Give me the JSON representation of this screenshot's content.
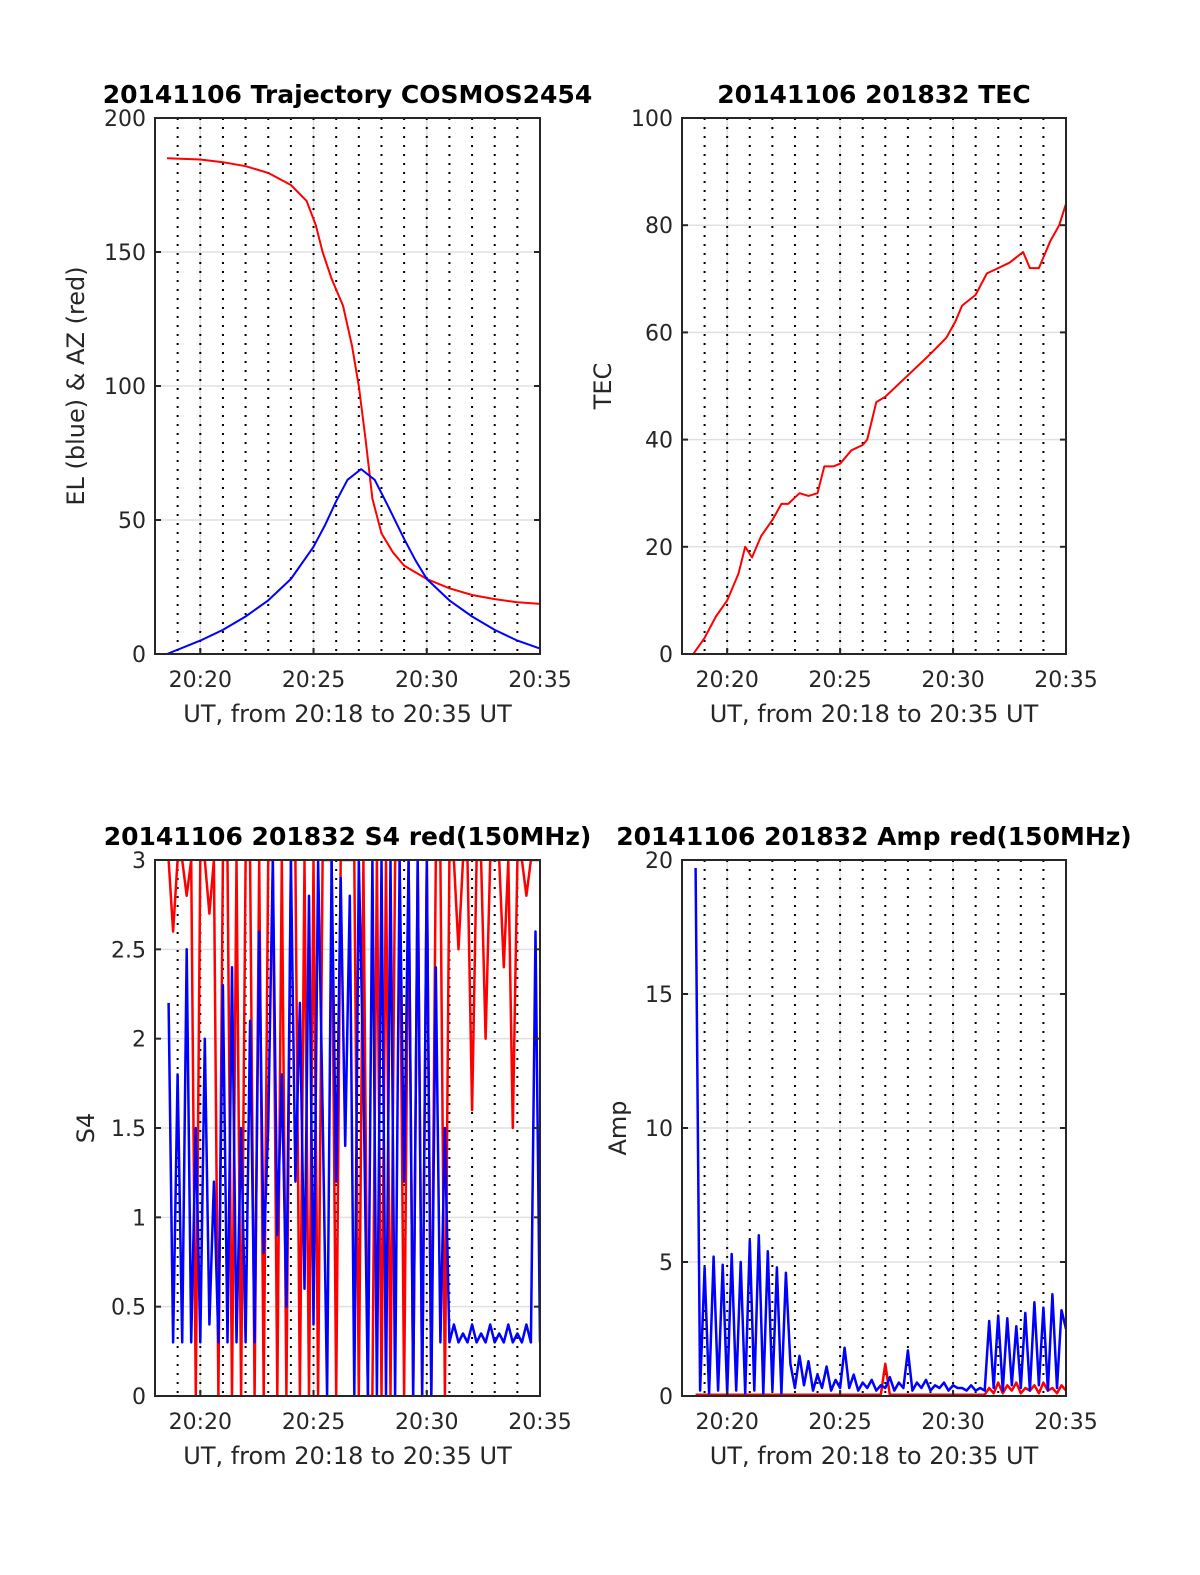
{
  "chart_data": [
    {
      "type": "line",
      "title": "20141106 Trajectory COSMOS2454",
      "xlabel": "UT, from 20:18 to 20:35 UT",
      "ylabel": "EL (blue) & AZ (red)",
      "x_units": "minutes after 20:18 UT",
      "xlim": [
        0,
        17
      ],
      "ylim": [
        0,
        200
      ],
      "xticks": [
        2,
        7,
        12,
        17
      ],
      "xtick_labels": [
        "20:20",
        "20:25",
        "20:30",
        "20:35"
      ],
      "yticks": [
        0,
        50,
        100,
        150,
        200
      ],
      "ytick_labels": [
        "0",
        "50",
        "100",
        "150",
        "200"
      ],
      "grid": true,
      "series": [
        {
          "name": "AZ",
          "color": "#ff0000",
          "points": [
            [
              0.53,
              185
            ],
            [
              2,
              184.5
            ],
            [
              3,
              183.5
            ],
            [
              4,
              182
            ],
            [
              5,
              179.5
            ],
            [
              6,
              175
            ],
            [
              6.7,
              169
            ],
            [
              7.1,
              160
            ],
            [
              7.4,
              150
            ],
            [
              7.8,
              140
            ],
            [
              8.3,
              130
            ],
            [
              8.7,
              115
            ],
            [
              9.0,
              100
            ],
            [
              9.3,
              80
            ],
            [
              9.6,
              58
            ],
            [
              10.0,
              45
            ],
            [
              10.5,
              38
            ],
            [
              11,
              33
            ],
            [
              12,
              28
            ],
            [
              13,
              24.5
            ],
            [
              14,
              22
            ],
            [
              15,
              20.5
            ],
            [
              16,
              19.3
            ],
            [
              17,
              18.7
            ]
          ]
        },
        {
          "name": "EL",
          "color": "#0000ff",
          "points": [
            [
              0.53,
              0
            ],
            [
              2,
              5
            ],
            [
              3,
              9
            ],
            [
              4,
              14
            ],
            [
              5,
              20
            ],
            [
              6,
              28
            ],
            [
              7,
              40
            ],
            [
              7.5,
              48
            ],
            [
              8,
              57
            ],
            [
              8.5,
              65
            ],
            [
              9.1,
              69
            ],
            [
              9.7,
              65
            ],
            [
              10.3,
              55
            ],
            [
              11,
              43
            ],
            [
              11.5,
              35
            ],
            [
              12,
              28
            ],
            [
              13,
              20
            ],
            [
              14,
              14
            ],
            [
              15,
              9
            ],
            [
              16,
              5
            ],
            [
              17,
              2
            ]
          ]
        }
      ]
    },
    {
      "type": "line",
      "title": "20141106 201832 TEC",
      "xlabel": "UT, from 20:18 to 20:35 UT",
      "ylabel": "TEC",
      "x_units": "minutes after 20:18 UT",
      "xlim": [
        0,
        17
      ],
      "ylim": [
        0,
        100
      ],
      "xticks": [
        2,
        7,
        12,
        17
      ],
      "xtick_labels": [
        "20:20",
        "20:25",
        "20:30",
        "20:35"
      ],
      "yticks": [
        0,
        20,
        40,
        60,
        80,
        100
      ],
      "ytick_labels": [
        "0",
        "20",
        "40",
        "60",
        "80",
        "100"
      ],
      "grid": true,
      "series": [
        {
          "name": "TEC",
          "color": "#ff0000",
          "points": [
            [
              0.5,
              0
            ],
            [
              1,
              3
            ],
            [
              1.5,
              7
            ],
            [
              2,
              10
            ],
            [
              2.5,
              15
            ],
            [
              2.8,
              20
            ],
            [
              3.1,
              18
            ],
            [
              3.5,
              22
            ],
            [
              4,
              25
            ],
            [
              4.4,
              28
            ],
            [
              4.7,
              28
            ],
            [
              5.2,
              30
            ],
            [
              5.6,
              29.5
            ],
            [
              6,
              30
            ],
            [
              6.3,
              35
            ],
            [
              6.7,
              35
            ],
            [
              7,
              35.5
            ],
            [
              7.5,
              38
            ],
            [
              8,
              39
            ],
            [
              8.2,
              40
            ],
            [
              8.6,
              47
            ],
            [
              9,
              48
            ],
            [
              9.5,
              50
            ],
            [
              10,
              52
            ],
            [
              10.5,
              54
            ],
            [
              11,
              56
            ],
            [
              11.7,
              59
            ],
            [
              12.1,
              62
            ],
            [
              12.4,
              65
            ],
            [
              13,
              67
            ],
            [
              13.5,
              71
            ],
            [
              14,
              72
            ],
            [
              14.5,
              73
            ],
            [
              15.1,
              75
            ],
            [
              15.4,
              72
            ],
            [
              15.8,
              72
            ],
            [
              16.3,
              77
            ],
            [
              16.7,
              80
            ],
            [
              17,
              84
            ]
          ]
        }
      ]
    },
    {
      "type": "line",
      "title": "20141106 201832 S4 red(150MHz)",
      "xlabel": "UT, from 20:18 to 20:35 UT",
      "ylabel": "S4",
      "x_units": "minutes after 20:18 UT",
      "xlim": [
        0,
        17
      ],
      "ylim": [
        0,
        3
      ],
      "xticks": [
        2,
        7,
        12,
        17
      ],
      "xtick_labels": [
        "20:20",
        "20:25",
        "20:30",
        "20:35"
      ],
      "yticks": [
        0,
        0.5,
        1,
        1.5,
        2,
        2.5,
        3
      ],
      "ytick_labels": [
        "0",
        "0.5",
        "1",
        "1.5",
        "2",
        "2.5",
        "3"
      ],
      "grid": true,
      "sample_start": 0.6,
      "sample_step": 0.2,
      "series": [
        {
          "name": "S4 red",
          "color": "#ff0000",
          "values": [
            3,
            2.6,
            3,
            3,
            2.8,
            3,
            0,
            3,
            3,
            2.7,
            3,
            0,
            3,
            3,
            0,
            3,
            0,
            3,
            3,
            0,
            3,
            0,
            3,
            3,
            0,
            3,
            0,
            3,
            3,
            0,
            3,
            0,
            3,
            0,
            3,
            3,
            3,
            0,
            3,
            3,
            3,
            3,
            0,
            3,
            0,
            0,
            3,
            0,
            3,
            0,
            3,
            3,
            0,
            3,
            0,
            3,
            0,
            3,
            0,
            3,
            3,
            0,
            3,
            3,
            2.5,
            3,
            3,
            1.6,
            3,
            3,
            2,
            3,
            3,
            3,
            2.4,
            3,
            1.5,
            3,
            3,
            2.8,
            3,
            3,
            3
          ]
        },
        {
          "name": "S4 blue",
          "color": "#0000ff",
          "values": [
            2.2,
            0.3,
            1.8,
            0.3,
            2.5,
            0.3,
            1.5,
            0.3,
            2,
            0.4,
            1.2,
            0.3,
            2.3,
            0.3,
            2.4,
            0.3,
            1.5,
            0.3,
            2.1,
            0.3,
            2.6,
            0.8,
            1.5,
            3,
            0.9,
            1.8,
            0.5,
            3,
            1.2,
            2.2,
            0.6,
            2.8,
            0.4,
            3,
            1.6,
            0,
            3,
            1.2,
            2.9,
            1.4,
            2.8,
            0,
            3,
            1.8,
            0,
            3,
            0,
            3,
            0,
            3,
            0,
            3,
            1.2,
            3,
            0,
            3,
            0,
            3,
            0,
            2.4,
            0.3,
            1.5,
            0.3,
            0.4,
            0.3,
            0.35,
            0.3,
            0.4,
            0.3,
            0.35,
            0.3,
            0.4,
            0.3,
            0.35,
            0.3,
            0.4,
            0.3,
            0.35,
            0.3,
            0.4,
            0.3,
            2.6,
            0.3
          ]
        }
      ]
    },
    {
      "type": "line",
      "title": "20141106 201832 Amp red(150MHz)",
      "xlabel": "UT, from 20:18 to 20:35 UT",
      "ylabel": "Amp",
      "x_units": "minutes after 20:18 UT",
      "xlim": [
        0,
        17
      ],
      "ylim": [
        0,
        20
      ],
      "xticks": [
        2,
        7,
        12,
        17
      ],
      "xtick_labels": [
        "20:20",
        "20:25",
        "20:30",
        "20:35"
      ],
      "yticks": [
        0,
        5,
        10,
        15,
        20
      ],
      "ytick_labels": [
        "0",
        "5",
        "10",
        "15",
        "20"
      ],
      "grid": true,
      "sample_start": 0.6,
      "sample_step": 0.2,
      "series": [
        {
          "name": "Amp red",
          "color": "#ff0000",
          "values": [
            0.05,
            0.05,
            0.05,
            0.05,
            0.05,
            0.05,
            0.05,
            0.05,
            0.05,
            0.05,
            0.05,
            0.05,
            0.05,
            0.05,
            0.05,
            0.05,
            0.05,
            0.05,
            0.05,
            0.05,
            0.05,
            0.05,
            0.05,
            0.05,
            0.05,
            0.05,
            0.05,
            0.05,
            0.05,
            0.05,
            0.05,
            0.05,
            0.05,
            0.05,
            0.05,
            0.05,
            0.05,
            0.05,
            0.05,
            0.05,
            0.05,
            0.05,
            1.2,
            0.05,
            0.05,
            0.05,
            0.05,
            0.05,
            0.05,
            0.05,
            0.05,
            0.05,
            0.05,
            0.05,
            0.05,
            0.05,
            0.05,
            0.05,
            0.05,
            0.05,
            0.05,
            0.05,
            0.05,
            0.05,
            0.05,
            0.3,
            0.1,
            0.5,
            0.1,
            0.4,
            0.2,
            0.5,
            0.1,
            0.3,
            0.2,
            0.4,
            0.1,
            0.5,
            0.2,
            0.3,
            0.1,
            0.4,
            0.2
          ]
        },
        {
          "name": "Amp blue",
          "color": "#0000ff",
          "values": [
            19.7,
            0.2,
            4.8,
            0.1,
            5.2,
            0.2,
            4.9,
            0.1,
            5.3,
            0.2,
            5.0,
            0.1,
            5.8,
            0.2,
            6.0,
            0.1,
            5.4,
            0.2,
            4.8,
            0.1,
            4.6,
            1.2,
            0.3,
            1.5,
            0.4,
            1.3,
            0.2,
            0.8,
            0.3,
            1.1,
            0.2,
            0.6,
            0.3,
            1.8,
            0.3,
            0.8,
            0.2,
            0.5,
            0.3,
            0.6,
            0.2,
            0.4,
            0.3,
            0.7,
            0.2,
            0.5,
            0.3,
            1.7,
            0.2,
            0.5,
            0.3,
            0.6,
            0.2,
            0.4,
            0.3,
            0.5,
            0.2,
            0.4,
            0.3,
            0.3,
            0.2,
            0.4,
            0.2,
            0.3,
            0.2,
            2.8,
            0.3,
            3.0,
            0.2,
            2.9,
            0.4,
            2.6,
            0.3,
            3.1,
            0.2,
            3.5,
            0.4,
            3.3,
            0.2,
            3.8,
            0.3,
            3.2,
            2.5
          ]
        }
      ]
    }
  ]
}
